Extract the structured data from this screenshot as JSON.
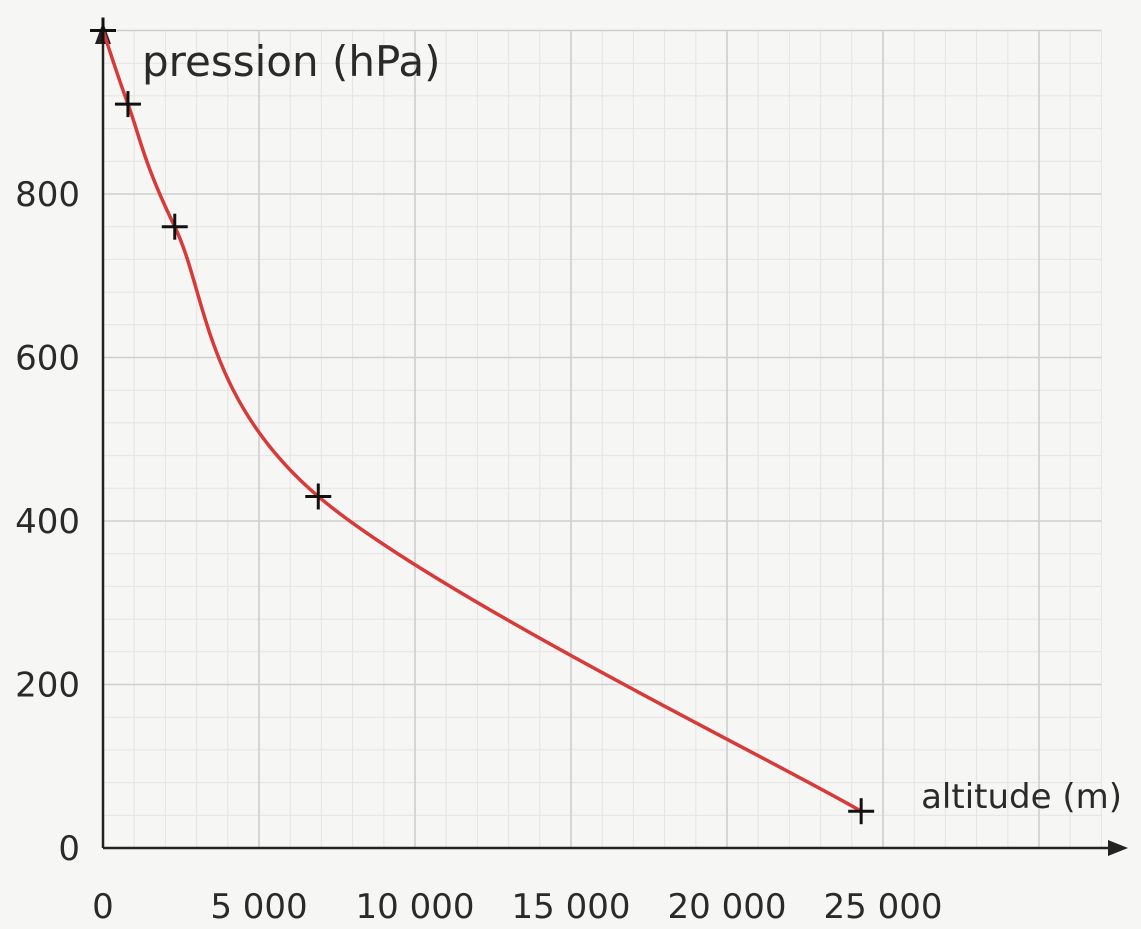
{
  "chart_data": {
    "type": "line",
    "title": "",
    "xlabel": "altitude (m)",
    "ylabel": "pression (hPa)",
    "xlim": [
      0,
      32000
    ],
    "ylim": [
      0,
      1000
    ],
    "x_ticks": [
      0,
      5000,
      10000,
      15000,
      20000,
      25000
    ],
    "x_tick_labels": [
      "0",
      "5 000",
      "10 000",
      "15 000",
      "20 000",
      "25 000"
    ],
    "y_ticks": [
      0,
      200,
      400,
      600,
      800
    ],
    "y_tick_labels": [
      "0",
      "200",
      "400",
      "600",
      "800"
    ],
    "grid": true,
    "colors": {
      "curve": "#d83a3a",
      "markers": "#111111",
      "grid_major": "#cfcfcf",
      "grid_minor": "#e4e4e4",
      "axis": "#222222"
    },
    "series": [
      {
        "points": [
          {
            "x": 0,
            "y": 1000
          },
          {
            "x": 800,
            "y": 910
          },
          {
            "x": 2300,
            "y": 760
          },
          {
            "x": 6900,
            "y": 430
          },
          {
            "x": 24300,
            "y": 45
          }
        ]
      }
    ]
  }
}
